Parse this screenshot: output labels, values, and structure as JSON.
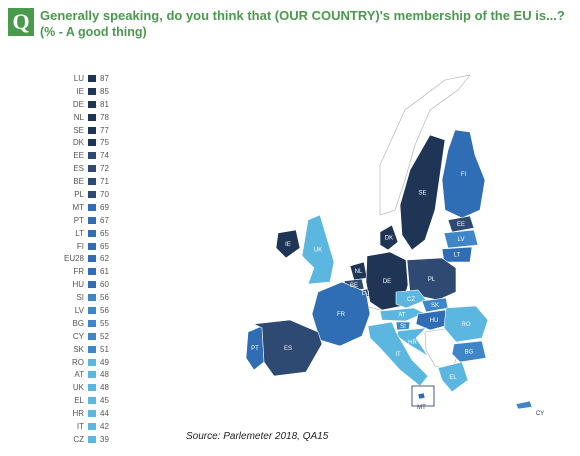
{
  "question_badge": "Q",
  "title": "Generally speaking, do you think that (OUR COUNTRY)'s membership of the EU is...?",
  "subtitle": "(% -  A  good thing)",
  "source": "Source: Parlemeter 2018, QA15",
  "colors": {
    "band_75_plus": "#1f3556",
    "band_70_74": "#2e4a72",
    "band_60_69": "#2f6db5",
    "band_50_59": "#3f86c9",
    "band_below_50": "#5bb6e0",
    "non_eu": "#ffffff",
    "title_green": "#4a9a4e"
  },
  "countries": [
    {
      "code": "LU",
      "value": "87"
    },
    {
      "code": "IE",
      "value": "85"
    },
    {
      "code": "DE",
      "value": "81"
    },
    {
      "code": "NL",
      "value": "78"
    },
    {
      "code": "SE",
      "value": "77"
    },
    {
      "code": "DK",
      "value": "75"
    },
    {
      "code": "EE",
      "value": "74"
    },
    {
      "code": "ES",
      "value": "72"
    },
    {
      "code": "BE",
      "value": "71"
    },
    {
      "code": "PL",
      "value": "70"
    },
    {
      "code": "MT",
      "value": "69"
    },
    {
      "code": "PT",
      "value": "67"
    },
    {
      "code": "LT",
      "value": "65"
    },
    {
      "code": "FI",
      "value": "65"
    },
    {
      "code": "EU28",
      "value": "62"
    },
    {
      "code": "FR",
      "value": "61"
    },
    {
      "code": "HU",
      "value": "60"
    },
    {
      "code": "SI",
      "value": "56"
    },
    {
      "code": "LV",
      "value": "56"
    },
    {
      "code": "BG",
      "value": "55"
    },
    {
      "code": "CY",
      "value": "52"
    },
    {
      "code": "SK",
      "value": "51"
    },
    {
      "code": "RO",
      "value": "49"
    },
    {
      "code": "AT",
      "value": "48"
    },
    {
      "code": "UK",
      "value": "48"
    },
    {
      "code": "EL",
      "value": "45"
    },
    {
      "code": "HR",
      "value": "44"
    },
    {
      "code": "IT",
      "value": "42"
    },
    {
      "code": "CZ",
      "value": "39"
    }
  ],
  "map_labels": [
    "FI",
    "SE",
    "EE",
    "LV",
    "LT",
    "DK",
    "IE",
    "UK",
    "NL",
    "BE",
    "LU",
    "DE",
    "PL",
    "CZ",
    "SK",
    "AT",
    "HU",
    "SI",
    "HR",
    "RO",
    "BG",
    "FR",
    "PT",
    "ES",
    "IT",
    "EL",
    "MT",
    "CY"
  ]
}
